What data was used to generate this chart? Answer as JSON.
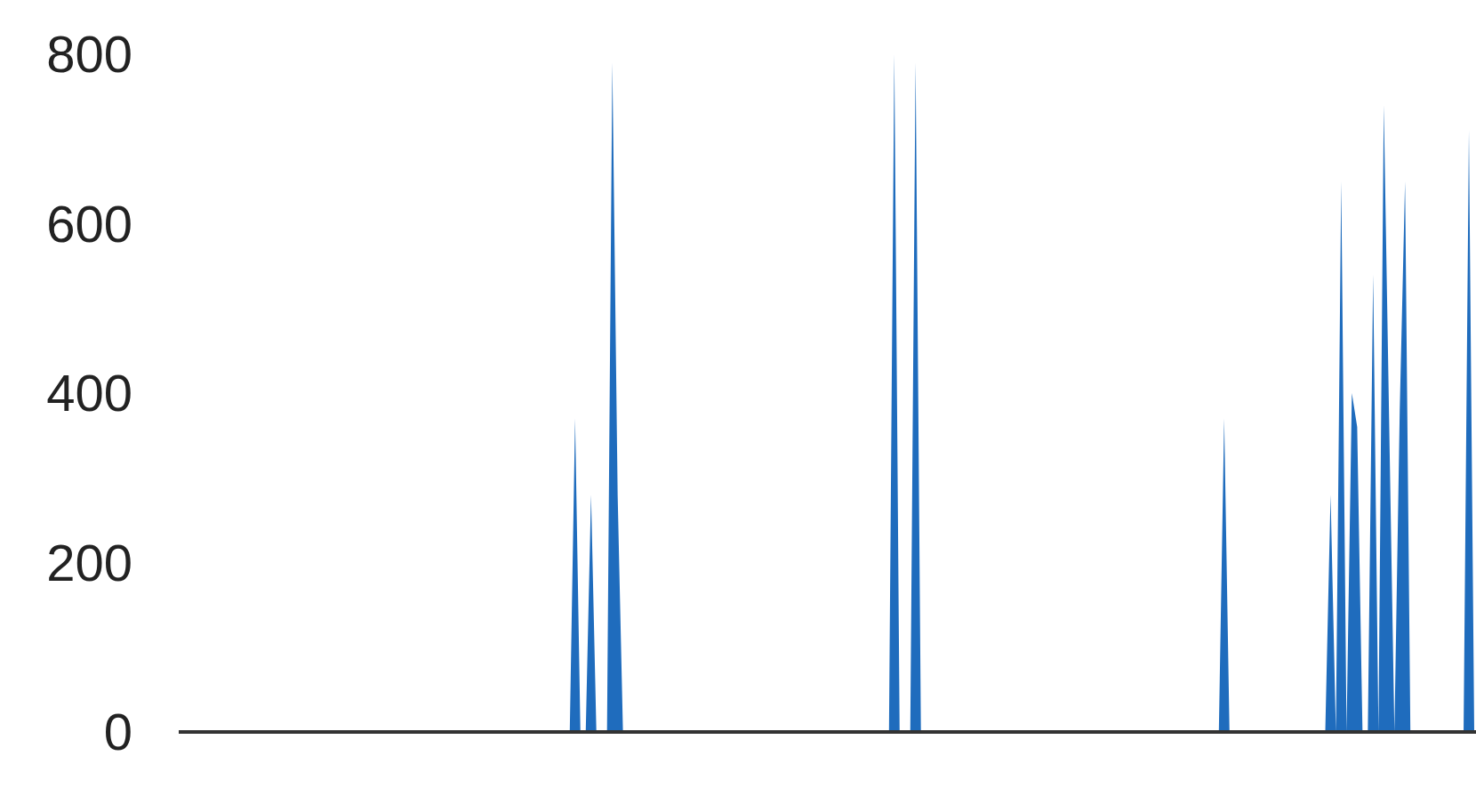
{
  "chart_data": {
    "type": "area",
    "tick_labels": "y",
    "grid": false,
    "color": "#1f6cbd",
    "ylim": [
      0,
      800
    ],
    "yticks": [
      0,
      200,
      400,
      600,
      800
    ],
    "categories": [
      null,
      null,
      null,
      null,
      null,
      null,
      null,
      null,
      null,
      null,
      null,
      null,
      null,
      null,
      null,
      null,
      null,
      null,
      null,
      null,
      null,
      null,
      null,
      null,
      null,
      null,
      null,
      null,
      null,
      null,
      null,
      null,
      null,
      null,
      null,
      null,
      null,
      null,
      null,
      null,
      null,
      null,
      null,
      null,
      null,
      null,
      null,
      null,
      null,
      null,
      null,
      null,
      null,
      null,
      null,
      null,
      null,
      null,
      null,
      null,
      null,
      null,
      null,
      null,
      null,
      null,
      null,
      null,
      null,
      null,
      null,
      null,
      null,
      null,
      null,
      null,
      null,
      null,
      null,
      null,
      null,
      null,
      null,
      null,
      null,
      null,
      null,
      null,
      null,
      null,
      null,
      null,
      null,
      null,
      null,
      null,
      null,
      null,
      null,
      null,
      null,
      null,
      null,
      null,
      null,
      null,
      null,
      null,
      null,
      null,
      null,
      null,
      null,
      null,
      null,
      null,
      null,
      null,
      null,
      null,
      null,
      null,
      null,
      null,
      null,
      null,
      null,
      null,
      null,
      null,
      null,
      null,
      null,
      null,
      null,
      null,
      null,
      null,
      null,
      null,
      null,
      null,
      null,
      null,
      null,
      null,
      null,
      null,
      null,
      null,
      null,
      null,
      null,
      null,
      null,
      null,
      null,
      null,
      null,
      null,
      null,
      null,
      null,
      null,
      null,
      null,
      null,
      null,
      null,
      null,
      null,
      null,
      null,
      null,
      null,
      null,
      null,
      null,
      null,
      null,
      null,
      null,
      null,
      null,
      null,
      null,
      null,
      null,
      null,
      null,
      null,
      null,
      null,
      null,
      null,
      null,
      null,
      null,
      null,
      null,
      null,
      null,
      null,
      null,
      null,
      null,
      null,
      null,
      null,
      null,
      null,
      null,
      null,
      null,
      null,
      null,
      null,
      null,
      null,
      null,
      null,
      null,
      null,
      null,
      null,
      null,
      null,
      null,
      null,
      null,
      null,
      null,
      null,
      null,
      null,
      null,
      null,
      null,
      null,
      null,
      null,
      null,
      null,
      null
    ],
    "values": [
      0,
      0,
      0,
      0,
      0,
      0,
      0,
      0,
      0,
      0,
      0,
      0,
      0,
      0,
      0,
      0,
      0,
      0,
      0,
      0,
      0,
      0,
      0,
      0,
      0,
      0,
      0,
      0,
      0,
      0,
      0,
      0,
      0,
      0,
      0,
      0,
      0,
      0,
      0,
      0,
      0,
      0,
      0,
      0,
      0,
      0,
      0,
      0,
      0,
      0,
      0,
      0,
      0,
      0,
      0,
      0,
      0,
      0,
      0,
      0,
      0,
      0,
      0,
      0,
      0,
      0,
      0,
      0,
      0,
      0,
      0,
      0,
      0,
      0,
      370,
      0,
      0,
      280,
      0,
      0,
      0,
      790,
      280,
      0,
      0,
      0,
      0,
      0,
      0,
      0,
      0,
      0,
      0,
      0,
      0,
      0,
      0,
      0,
      0,
      0,
      0,
      0,
      0,
      0,
      0,
      0,
      0,
      0,
      0,
      0,
      0,
      0,
      0,
      0,
      0,
      0,
      0,
      0,
      0,
      0,
      0,
      0,
      0,
      0,
      0,
      0,
      0,
      0,
      0,
      0,
      0,
      0,
      0,
      0,
      800,
      0,
      0,
      0,
      790,
      0,
      0,
      0,
      0,
      0,
      0,
      0,
      0,
      0,
      0,
      0,
      0,
      0,
      0,
      0,
      0,
      0,
      0,
      0,
      0,
      0,
      0,
      0,
      0,
      0,
      0,
      0,
      0,
      0,
      0,
      0,
      0,
      0,
      0,
      0,
      0,
      0,
      0,
      0,
      0,
      0,
      0,
      0,
      0,
      0,
      0,
      0,
      0,
      0,
      0,
      0,
      0,
      0,
      0,
      0,
      0,
      0,
      370,
      0,
      0,
      0,
      0,
      0,
      0,
      0,
      0,
      0,
      0,
      0,
      0,
      0,
      0,
      0,
      0,
      0,
      0,
      0,
      280,
      0,
      650,
      0,
      400,
      360,
      0,
      0,
      540,
      0,
      740,
      370,
      0,
      380,
      650,
      0,
      0,
      0,
      0,
      0,
      0,
      0,
      0,
      0,
      0,
      0,
      710,
      0
    ]
  }
}
